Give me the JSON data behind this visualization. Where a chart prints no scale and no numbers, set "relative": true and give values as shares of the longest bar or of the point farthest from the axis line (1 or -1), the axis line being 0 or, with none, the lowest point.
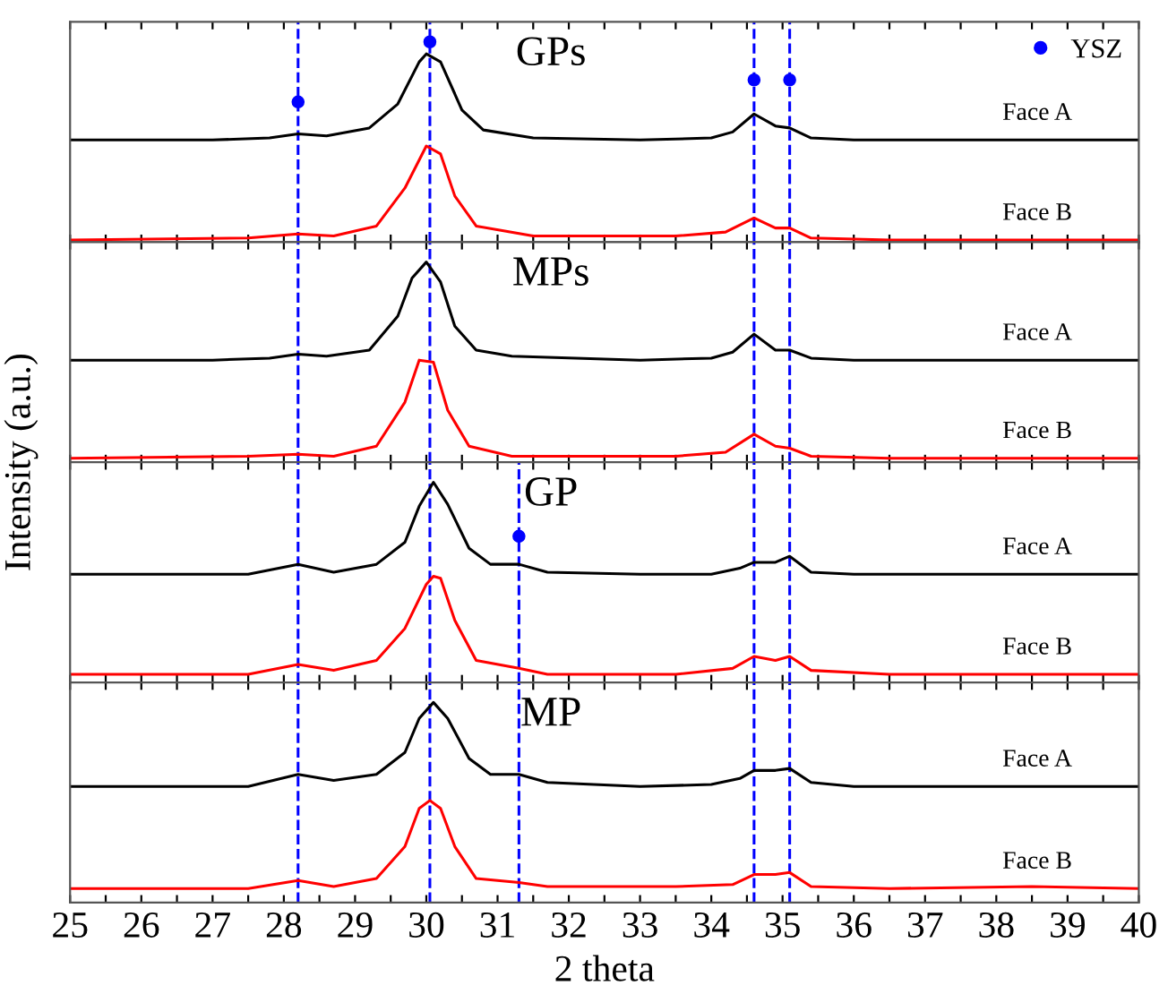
{
  "chart_data": [
    {
      "type": "line",
      "title": "GPs",
      "ylabel": "Intensity (a.u.)",
      "relative": true,
      "xlim": [
        25,
        40
      ],
      "xticks": [
        25,
        {
          "value": 25.5,
          "label": null
        },
        26,
        {
          "value": 26.5,
          "label": null
        },
        27,
        {
          "value": 27.5,
          "label": null
        },
        28,
        {
          "value": 28.5,
          "label": null
        },
        29,
        {
          "value": 29.5,
          "label": null
        },
        30,
        {
          "value": 30.5,
          "label": null
        },
        31,
        {
          "value": 31.5,
          "label": null
        },
        32,
        {
          "value": 32.5,
          "label": null
        },
        33,
        {
          "value": 33.5,
          "label": null
        },
        34,
        {
          "value": 34.5,
          "label": null
        },
        35,
        {
          "value": 35.5,
          "label": null
        },
        36,
        {
          "value": 36.5,
          "label": null
        },
        37,
        {
          "value": 37.5,
          "label": null
        },
        38,
        {
          "value": 38.5,
          "label": null
        },
        39,
        {
          "value": 39.5,
          "label": null
        },
        40
      ],
      "tick_labels": false,
      "legend": "top right",
      "grid": false,
      "series": [
        {
          "name": "Face A",
          "color": "#000000",
          "x": [
            25,
            27,
            27.8,
            28.2,
            28.6,
            29.2,
            29.6,
            29.9,
            30.0,
            30.2,
            30.5,
            30.8,
            31.5,
            33,
            34,
            34.3,
            34.6,
            34.9,
            35.1,
            35.4,
            36,
            40
          ],
          "values": [
            0.51,
            0.51,
            0.52,
            0.54,
            0.53,
            0.57,
            0.69,
            0.9,
            0.94,
            0.9,
            0.66,
            0.56,
            0.52,
            0.51,
            0.52,
            0.55,
            0.64,
            0.58,
            0.57,
            0.52,
            0.51,
            0.51
          ]
        },
        {
          "name": "Face B",
          "color": "#ff0000",
          "x": [
            25,
            27.5,
            28.2,
            28.7,
            29.3,
            29.7,
            30.0,
            30.2,
            30.4,
            30.7,
            31.5,
            33.5,
            34.2,
            34.6,
            34.9,
            35.1,
            35.4,
            36.5,
            40
          ],
          "values": [
            0.01,
            0.02,
            0.04,
            0.03,
            0.08,
            0.27,
            0.48,
            0.44,
            0.23,
            0.08,
            0.03,
            0.03,
            0.05,
            0.12,
            0.07,
            0.07,
            0.02,
            0.01,
            0.01
          ]
        },
        {
          "name": "YSZ",
          "type": "scatter",
          "marker": "circle",
          "color": "#0000ff",
          "x": [
            28.2,
            30.05,
            34.6,
            35.1
          ],
          "values": [
            0.7,
            1,
            0.81,
            0.81
          ]
        }
      ],
      "ref_lines": [
        {
          "axis": "x",
          "value": 28.2,
          "color": "#0000ff",
          "line_style": "dashed"
        },
        {
          "axis": "x",
          "value": 30.05,
          "color": "#0000ff",
          "line_style": "dashed"
        },
        {
          "axis": "x",
          "value": 34.6,
          "color": "#0000ff",
          "line_style": "dashed"
        },
        {
          "axis": "x",
          "value": 35.1,
          "color": "#0000ff",
          "line_style": "dashed"
        }
      ]
    },
    {
      "type": "line",
      "title": "MPs",
      "relative": true,
      "xlim": [
        25,
        40
      ],
      "xticks": [
        25,
        {
          "value": 25.5,
          "label": null
        },
        26,
        {
          "value": 26.5,
          "label": null
        },
        27,
        {
          "value": 27.5,
          "label": null
        },
        28,
        {
          "value": 28.5,
          "label": null
        },
        29,
        {
          "value": 29.5,
          "label": null
        },
        30,
        {
          "value": 30.5,
          "label": null
        },
        31,
        {
          "value": 31.5,
          "label": null
        },
        32,
        {
          "value": 32.5,
          "label": null
        },
        33,
        {
          "value": 33.5,
          "label": null
        },
        34,
        {
          "value": 34.5,
          "label": null
        },
        35,
        {
          "value": 35.5,
          "label": null
        },
        36,
        {
          "value": 36.5,
          "label": null
        },
        37,
        {
          "value": 37.5,
          "label": null
        },
        38,
        {
          "value": 38.5,
          "label": null
        },
        39,
        {
          "value": 39.5,
          "label": null
        },
        40
      ],
      "tick_labels": false,
      "grid": false,
      "series": [
        {
          "name": "Face A",
          "color": "#000000",
          "x": [
            25,
            27,
            27.8,
            28.2,
            28.6,
            29.2,
            29.6,
            29.8,
            30.0,
            30.2,
            30.4,
            30.7,
            31.2,
            33,
            34,
            34.3,
            34.6,
            34.9,
            35.1,
            35.4,
            36,
            40
          ],
          "values": [
            0.51,
            0.51,
            0.52,
            0.54,
            0.53,
            0.56,
            0.73,
            0.92,
            1,
            0.9,
            0.68,
            0.56,
            0.53,
            0.51,
            0.52,
            0.55,
            0.64,
            0.56,
            0.56,
            0.52,
            0.51,
            0.51
          ]
        },
        {
          "name": "Face B",
          "color": "#ff0000",
          "x": [
            25,
            27.5,
            28.2,
            28.7,
            29.3,
            29.7,
            29.9,
            30.1,
            30.3,
            30.6,
            31.2,
            33.5,
            34.2,
            34.6,
            34.9,
            35.1,
            35.4,
            36.5,
            40
          ],
          "values": [
            0.02,
            0.03,
            0.04,
            0.03,
            0.08,
            0.3,
            0.51,
            0.5,
            0.26,
            0.08,
            0.03,
            0.03,
            0.05,
            0.14,
            0.08,
            0.07,
            0.03,
            0.02,
            0.02
          ]
        }
      ],
      "ref_lines": [
        {
          "axis": "x",
          "value": 28.2,
          "color": "#0000ff",
          "line_style": "dashed"
        },
        {
          "axis": "x",
          "value": 30.05,
          "color": "#0000ff",
          "line_style": "dashed"
        },
        {
          "axis": "x",
          "value": 34.6,
          "color": "#0000ff",
          "line_style": "dashed"
        },
        {
          "axis": "x",
          "value": 35.1,
          "color": "#0000ff",
          "line_style": "dashed"
        }
      ]
    },
    {
      "type": "line",
      "title": "GP",
      "relative": true,
      "xlim": [
        25,
        40
      ],
      "xticks": [
        25,
        {
          "value": 25.5,
          "label": null
        },
        26,
        {
          "value": 26.5,
          "label": null
        },
        27,
        {
          "value": 27.5,
          "label": null
        },
        28,
        {
          "value": 28.5,
          "label": null
        },
        29,
        {
          "value": 29.5,
          "label": null
        },
        30,
        {
          "value": 30.5,
          "label": null
        },
        31,
        {
          "value": 31.5,
          "label": null
        },
        32,
        {
          "value": 32.5,
          "label": null
        },
        33,
        {
          "value": 33.5,
          "label": null
        },
        34,
        {
          "value": 34.5,
          "label": null
        },
        35,
        {
          "value": 35.5,
          "label": null
        },
        36,
        {
          "value": 36.5,
          "label": null
        },
        37,
        {
          "value": 37.5,
          "label": null
        },
        38,
        {
          "value": 38.5,
          "label": null
        },
        39,
        {
          "value": 39.5,
          "label": null
        },
        40
      ],
      "tick_labels": false,
      "grid": false,
      "series": [
        {
          "name": "Face A",
          "color": "#000000",
          "x": [
            25,
            27.5,
            28.2,
            28.7,
            29.3,
            29.7,
            29.9,
            30.1,
            30.3,
            30.6,
            30.9,
            31.3,
            31.7,
            33,
            34,
            34.4,
            34.6,
            34.9,
            35.1,
            35.4,
            36,
            40
          ],
          "values": [
            0.54,
            0.54,
            0.59,
            0.55,
            0.59,
            0.7,
            0.88,
            1,
            0.89,
            0.67,
            0.59,
            0.59,
            0.55,
            0.54,
            0.54,
            0.57,
            0.6,
            0.6,
            0.63,
            0.55,
            0.54,
            0.54
          ]
        },
        {
          "name": "Face B",
          "color": "#ff0000",
          "x": [
            25,
            27.5,
            28.2,
            28.7,
            29.3,
            29.7,
            30.0,
            30.1,
            30.2,
            30.4,
            30.7,
            31.3,
            31.7,
            33.5,
            34.3,
            34.6,
            34.9,
            35.1,
            35.4,
            36.5,
            40
          ],
          "values": [
            0.04,
            0.04,
            0.09,
            0.06,
            0.11,
            0.27,
            0.49,
            0.53,
            0.52,
            0.31,
            0.11,
            0.07,
            0.04,
            0.04,
            0.07,
            0.13,
            0.11,
            0.13,
            0.06,
            0.04,
            0.04
          ]
        },
        {
          "type": "scatter",
          "marker": "circle",
          "color": "#0000ff",
          "x": [
            31.3
          ],
          "values": [
            0.73
          ]
        }
      ],
      "ref_lines": [
        {
          "axis": "x",
          "value": 28.2,
          "color": "#0000ff",
          "line_style": "dashed"
        },
        {
          "axis": "x",
          "value": 30.05,
          "color": "#0000ff",
          "line_style": "dashed"
        },
        {
          "axis": "x",
          "value": 31.3,
          "color": "#0000ff",
          "line_style": "dashed"
        },
        {
          "axis": "x",
          "value": 34.6,
          "color": "#0000ff",
          "line_style": "dashed"
        },
        {
          "axis": "x",
          "value": 35.1,
          "color": "#0000ff",
          "line_style": "dashed"
        }
      ]
    },
    {
      "type": "line",
      "title": "MP",
      "xlabel": "2 theta",
      "relative": true,
      "xlim": [
        25,
        40
      ],
      "xticks": [
        25,
        {
          "value": 25.5,
          "label": null
        },
        26,
        {
          "value": 26.5,
          "label": null
        },
        27,
        {
          "value": 27.5,
          "label": null
        },
        28,
        {
          "value": 28.5,
          "label": null
        },
        29,
        {
          "value": 29.5,
          "label": null
        },
        30,
        {
          "value": 30.5,
          "label": null
        },
        31,
        {
          "value": 31.5,
          "label": null
        },
        32,
        {
          "value": 32.5,
          "label": null
        },
        33,
        {
          "value": 33.5,
          "label": null
        },
        34,
        {
          "value": 34.5,
          "label": null
        },
        35,
        {
          "value": 35.5,
          "label": null
        },
        36,
        {
          "value": 36.5,
          "label": null
        },
        37,
        {
          "value": 37.5,
          "label": null
        },
        38,
        {
          "value": 38.5,
          "label": null
        },
        39,
        {
          "value": 39.5,
          "label": null
        },
        40
      ],
      "tick_labels": "x",
      "grid": false,
      "series": [
        {
          "name": "Face A",
          "color": "#000000",
          "x": [
            25,
            27.5,
            28.2,
            28.7,
            29.3,
            29.7,
            29.9,
            30.1,
            30.3,
            30.6,
            30.9,
            31.3,
            31.7,
            33,
            34,
            34.4,
            34.6,
            34.9,
            35.1,
            35.4,
            36,
            40
          ],
          "values": [
            0.58,
            0.58,
            0.64,
            0.61,
            0.64,
            0.75,
            0.92,
            1,
            0.92,
            0.72,
            0.64,
            0.64,
            0.6,
            0.58,
            0.59,
            0.62,
            0.66,
            0.66,
            0.67,
            0.6,
            0.58,
            0.58
          ]
        },
        {
          "name": "Face B",
          "color": "#ff0000",
          "x": [
            25,
            27.5,
            28.2,
            28.7,
            29.3,
            29.7,
            29.9,
            30.05,
            30.2,
            30.4,
            30.7,
            31.3,
            31.7,
            33.5,
            34.3,
            34.6,
            34.9,
            35.1,
            35.4,
            36.5,
            38.5,
            40
          ],
          "values": [
            0.07,
            0.07,
            0.11,
            0.08,
            0.12,
            0.28,
            0.47,
            0.51,
            0.47,
            0.28,
            0.12,
            0.1,
            0.08,
            0.08,
            0.09,
            0.14,
            0.14,
            0.15,
            0.08,
            0.07,
            0.08,
            0.07
          ]
        }
      ],
      "ref_lines": [
        {
          "axis": "x",
          "value": 28.2,
          "color": "#0000ff",
          "line_style": "dashed"
        },
        {
          "axis": "x",
          "value": 30.05,
          "color": "#0000ff",
          "line_style": "dashed"
        },
        {
          "axis": "x",
          "value": 31.3,
          "color": "#0000ff",
          "line_style": "dashed"
        },
        {
          "axis": "x",
          "value": 34.6,
          "color": "#0000ff",
          "line_style": "dashed"
        },
        {
          "axis": "x",
          "value": 35.1,
          "color": "#0000ff",
          "line_style": "dashed"
        }
      ]
    }
  ]
}
